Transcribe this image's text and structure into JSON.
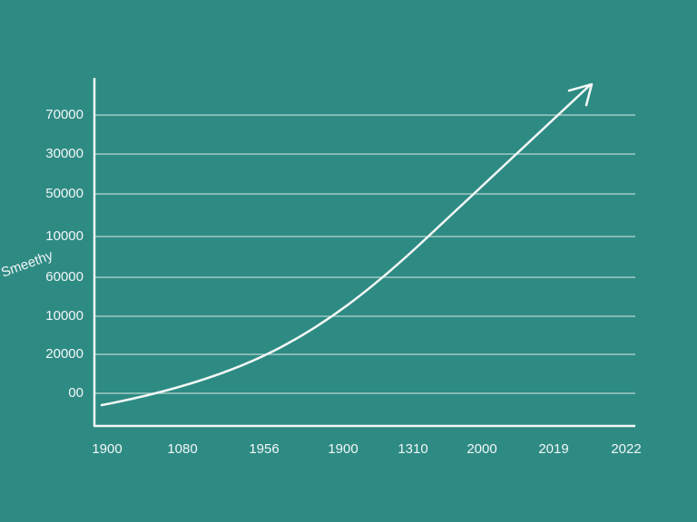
{
  "axis_label": "Smeethy",
  "y_labels": [
    "70000",
    "30000",
    "50000",
    "10000",
    "60000",
    "10000",
    "20000",
    "00"
  ],
  "x_labels": [
    "1900",
    "1080",
    "1956",
    "1900",
    "1310",
    "2000",
    "2019",
    "2022"
  ]
}
